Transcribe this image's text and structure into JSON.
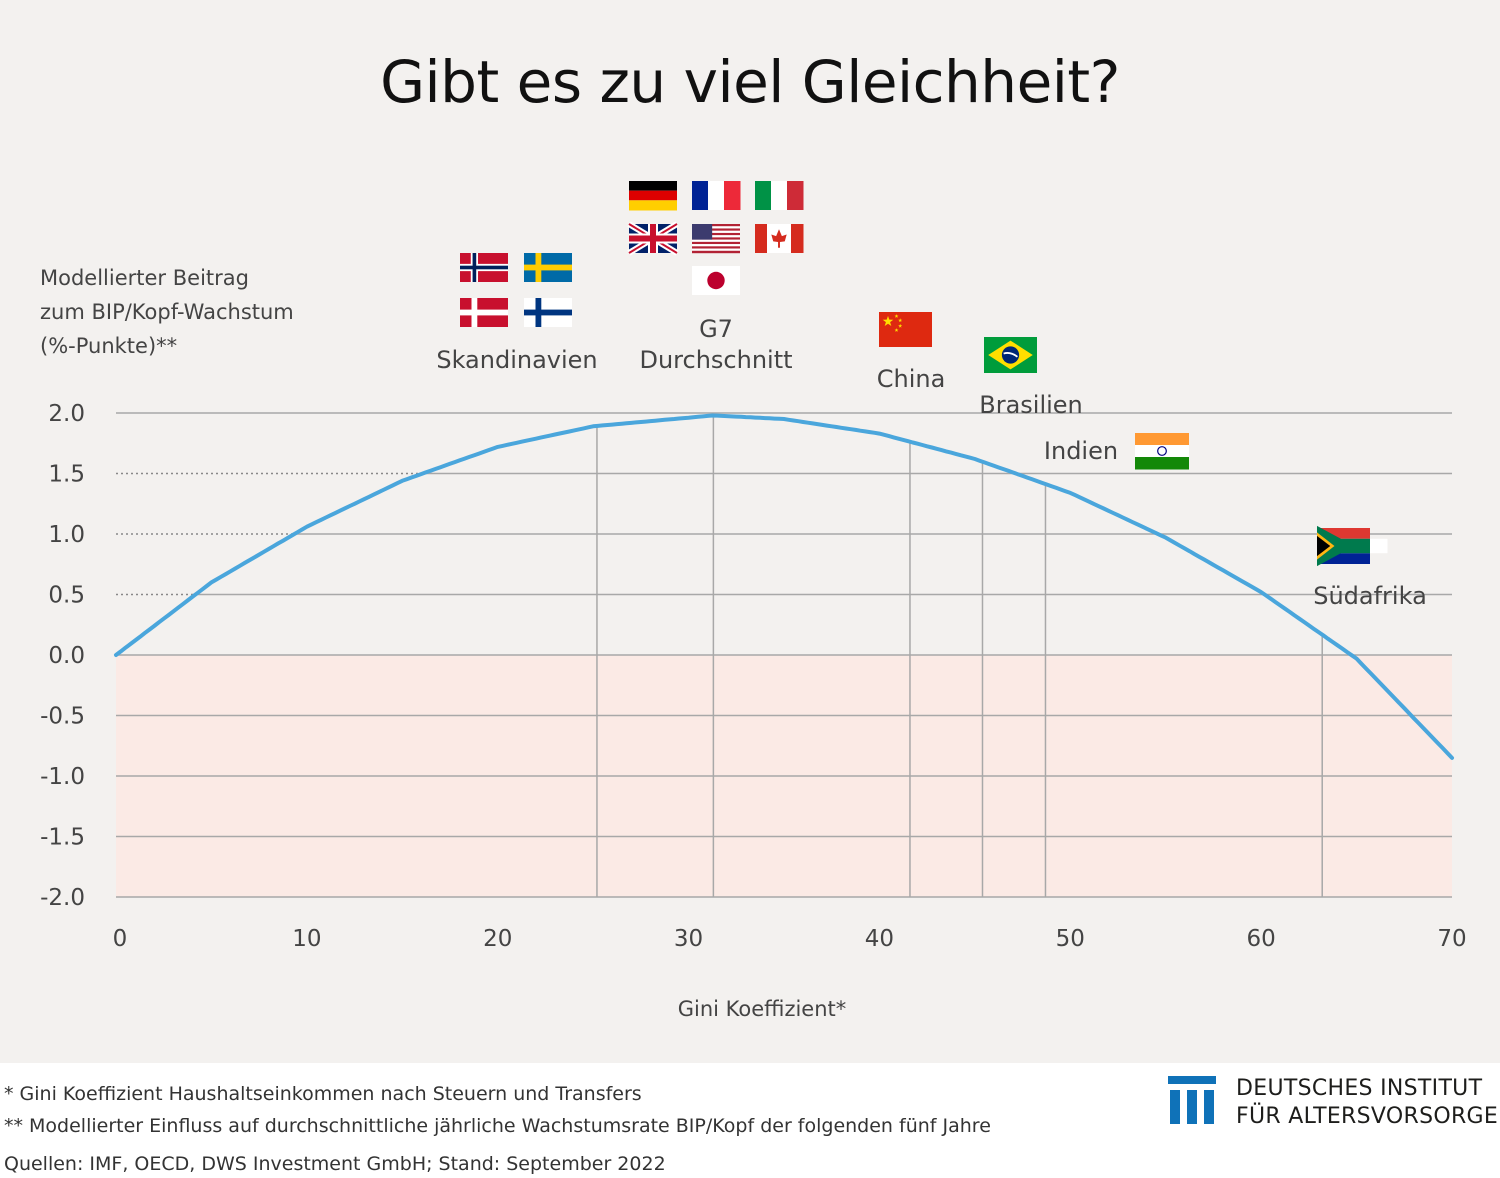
{
  "title": "Gibt es zu viel Gleichheit?",
  "y_axis_label_lines": [
    "Modellierter Beitrag",
    "zum BIP/Kopf-Wachstum",
    "(%-Punkte)**"
  ],
  "x_axis_label": "Gini Koeffizient*",
  "footnotes": [
    "* Gini Koeffizient Haushaltseinkommen nach Steuern und Transfers",
    "** Modellierter Einfluss auf durchschnittliche jährliche Wachstumsrate BIP/Kopf der folgenden fünf Jahre",
    "Quellen: IMF, OECD, DWS Investment GmbH; Stand: September 2022"
  ],
  "logo": {
    "line1": "DEUTSCHES INSTITUT",
    "line2": "FÜR ALTERSVORSORGE",
    "color": "#0f72b8"
  },
  "colors": {
    "curve": "#4aa6dc",
    "negative_band": "#fbeae5",
    "grid": "#a8a8a8",
    "dotted_guides": "#888888",
    "panel_background": "#f3f1ef"
  },
  "chart_data": {
    "type": "line",
    "title": "Gibt es zu viel Gleichheit?",
    "xlabel": "Gini Koeffizient*",
    "ylabel": "Modellierter Beitrag zum BIP/Kopf-Wachstum (%-Punkte)**",
    "xlim": [
      0,
      70
    ],
    "ylim": [
      -2.0,
      2.0
    ],
    "x_ticks": [
      "0",
      "10",
      "20",
      "30",
      "40",
      "50",
      "60",
      "70"
    ],
    "y_ticks": [
      "2.0",
      "1.5",
      "1.0",
      "0.5",
      "0.0",
      "-0.5",
      "-1.0",
      "-1.5",
      "-2.0"
    ],
    "grid": true,
    "negative_region_shaded": true,
    "series": [
      {
        "x": [
          0,
          5,
          10,
          15,
          20,
          25,
          31.3,
          35,
          40,
          45,
          50,
          55,
          60,
          65,
          70
        ],
        "y": [
          0.0,
          0.6,
          1.06,
          1.44,
          1.72,
          1.89,
          1.98,
          1.95,
          1.83,
          1.62,
          1.34,
          0.97,
          0.52,
          -0.03,
          -0.85
        ]
      }
    ],
    "markers": [
      {
        "label": "Skandinavien",
        "x": 25.2,
        "y": 1.9,
        "flags": [
          "norway-flag",
          "sweden-flag",
          "denmark-flag",
          "finland-flag"
        ]
      },
      {
        "label_lines": [
          "G7",
          "Durchschnitt"
        ],
        "x": 31.3,
        "y": 1.98,
        "flags": [
          "germany-flag",
          "france-flag",
          "italy-flag",
          "uk-flag",
          "usa-flag",
          "canada-flag",
          "japan-flag"
        ]
      },
      {
        "label": "China",
        "x": 41.6,
        "y": 1.8,
        "flags": [
          "china-flag"
        ]
      },
      {
        "label": "Brasilien",
        "x": 45.4,
        "y": 1.63,
        "flags": [
          "brazil-flag"
        ]
      },
      {
        "label": "Indien",
        "x": 48.7,
        "y": 1.45,
        "flags": [
          "india-flag"
        ]
      },
      {
        "label": "Südafrika",
        "x": 63.2,
        "y": 0.14,
        "flags": [
          "south-africa-flag"
        ]
      }
    ]
  }
}
